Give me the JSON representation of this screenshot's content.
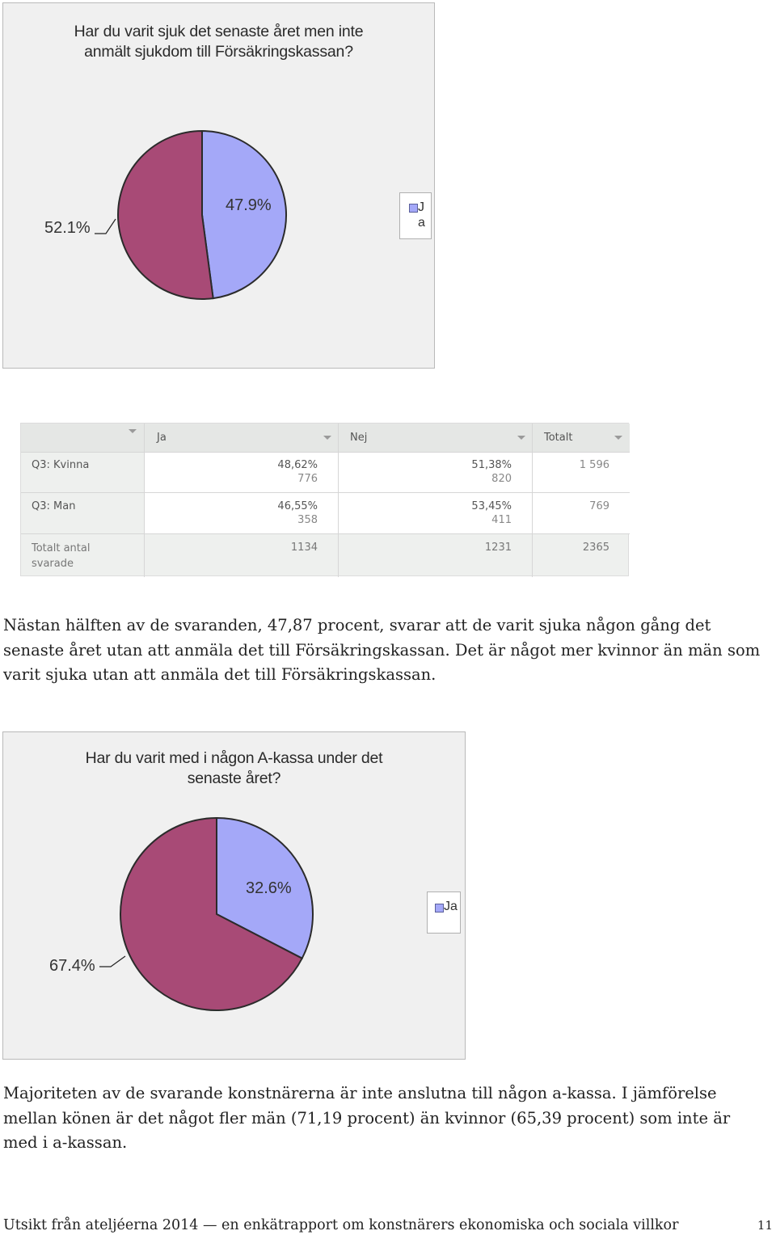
{
  "chart_data": [
    {
      "type": "pie",
      "title": "Har du varit sjuk det senaste året men inte anmält sjukdom till Försäkringskassan?",
      "title_lines": [
        "Har du varit sjuk det senaste året men inte",
        "anmält sjukdom till Försäkringskassan?"
      ],
      "slices": [
        {
          "label": "Ja",
          "value": 47.9,
          "display": "47.9%",
          "color": "#a4a8f8"
        },
        {
          "label": "",
          "value": 52.1,
          "display": "52.1%",
          "color": "#a84a76"
        }
      ],
      "legend": {
        "entries": [
          "Ja"
        ],
        "placement": "right",
        "text_lines": [
          "J",
          "a"
        ]
      }
    },
    {
      "type": "pie",
      "title": "Har du varit med i någon A-kassa under det senaste året?",
      "title_lines": [
        "Har du varit med i någon A-kassa under det",
        "senaste året?"
      ],
      "slices": [
        {
          "label": "Ja",
          "value": 32.6,
          "display": "32.6%",
          "color": "#a4a8f8"
        },
        {
          "label": "",
          "value": 67.4,
          "display": "67.4%",
          "color": "#a84a76"
        }
      ],
      "legend": {
        "entries": [
          "Ja"
        ],
        "placement": "right",
        "text_lines": [
          "Ja"
        ]
      }
    }
  ],
  "table": {
    "headers": [
      "Ja",
      "Nej",
      "Totalt"
    ],
    "rows": [
      {
        "label": "Q3: Kvinna",
        "ja_pct": "48,62%",
        "ja_n": "776",
        "nej_pct": "51,38%",
        "nej_n": "820",
        "total": "1 596"
      },
      {
        "label": "Q3: Man",
        "ja_pct": "46,55%",
        "ja_n": "358",
        "nej_pct": "53,45%",
        "nej_n": "411",
        "total": "769"
      }
    ],
    "totals": {
      "label_lines": [
        "Totalt antal",
        "svarade"
      ],
      "ja": "1134",
      "nej": "1231",
      "total": "2365"
    }
  },
  "paragraphs": [
    "Nästan hälften av de svaranden, 47,87 procent, svarar att de varit sjuka någon gång det senaste året utan att anmäla det till Försäkringskassan. Det är något mer kvinnor än män som varit sjuka utan att anmäla det till Försäkringskassan.",
    "Majoriteten av de svarande konstnärerna är inte anslutna till någon a-kassa. I jämförelse mellan könen är det något fler män (71,19 procent) än kvinnor (65,39 procent) som inte är med i a-kassan."
  ],
  "footer": {
    "text": "Utsikt från ateljéerna 2014 — en enkätrapport om konstnärers ekonomiska och sociala villkor",
    "page": "11"
  }
}
